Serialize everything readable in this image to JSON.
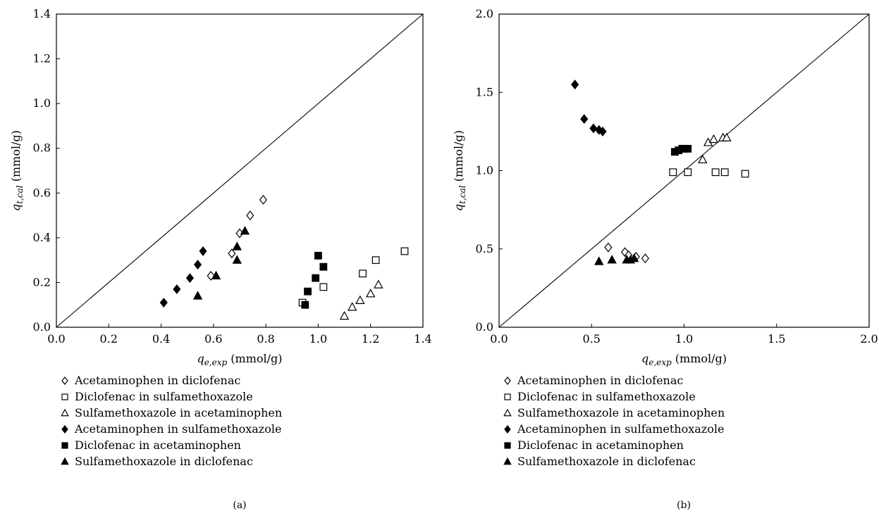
{
  "chart_data": [
    {
      "type": "scatter",
      "panel_label": "(a)",
      "title": "",
      "xlabel": {
        "base": "q",
        "sub": "e,exp",
        "unit": " (mmol/g)"
      },
      "ylabel": {
        "base": "q",
        "sub": "t,cal",
        "unit": " (mmol/g)"
      },
      "xlim": [
        0,
        1.4
      ],
      "ylim": [
        0,
        1.4
      ],
      "xticks": [
        "0.0",
        "0.2",
        "0.4",
        "0.6",
        "0.8",
        "1.0",
        "1.2",
        "1.4"
      ],
      "yticks": [
        "0.0",
        "0.2",
        "0.4",
        "0.6",
        "0.8",
        "1.0",
        "1.2",
        "1.4"
      ],
      "tick_step": 0.2,
      "diagonal": true,
      "legend_position": "below",
      "series": [
        {
          "name": "Acetaminophen in diclofenac",
          "marker": "diamond",
          "fill": false,
          "points": [
            [
              0.59,
              0.23
            ],
            [
              0.67,
              0.33
            ],
            [
              0.7,
              0.42
            ],
            [
              0.74,
              0.5
            ],
            [
              0.79,
              0.57
            ]
          ]
        },
        {
          "name": "Diclofenac in sulfamethoxazole",
          "marker": "square",
          "fill": false,
          "points": [
            [
              0.94,
              0.11
            ],
            [
              1.02,
              0.18
            ],
            [
              1.17,
              0.24
            ],
            [
              1.22,
              0.3
            ],
            [
              1.33,
              0.34
            ]
          ]
        },
        {
          "name": "Sulfamethoxazole in acetaminophen",
          "marker": "triangle",
          "fill": false,
          "points": [
            [
              1.1,
              0.05
            ],
            [
              1.13,
              0.09
            ],
            [
              1.16,
              0.12
            ],
            [
              1.2,
              0.15
            ],
            [
              1.23,
              0.19
            ]
          ]
        },
        {
          "name": "Acetaminophen in sulfamethoxazole",
          "marker": "diamond",
          "fill": true,
          "points": [
            [
              0.41,
              0.11
            ],
            [
              0.46,
              0.17
            ],
            [
              0.51,
              0.22
            ],
            [
              0.54,
              0.28
            ],
            [
              0.56,
              0.34
            ]
          ]
        },
        {
          "name": "Diclofenac in acetaminophen",
          "marker": "square",
          "fill": true,
          "points": [
            [
              0.95,
              0.1
            ],
            [
              0.96,
              0.16
            ],
            [
              0.99,
              0.22
            ],
            [
              1.0,
              0.32
            ],
            [
              1.02,
              0.27
            ]
          ]
        },
        {
          "name": "Sulfamethoxazole in diclofenac",
          "marker": "triangle",
          "fill": true,
          "points": [
            [
              0.54,
              0.14
            ],
            [
              0.61,
              0.23
            ],
            [
              0.69,
              0.3
            ],
            [
              0.69,
              0.36
            ],
            [
              0.72,
              0.43
            ]
          ]
        }
      ]
    },
    {
      "type": "scatter",
      "panel_label": "(b)",
      "title": "",
      "xlabel": {
        "base": "q",
        "sub": "e,exp",
        "unit": " (mmol/g)"
      },
      "ylabel": {
        "base": "q",
        "sub": "t,cal",
        "unit": " (mmol/g)"
      },
      "xlim": [
        0,
        2.0
      ],
      "ylim": [
        0,
        2.0
      ],
      "xticks": [
        "0.0",
        "0.5",
        "1.0",
        "1.5",
        "2.0"
      ],
      "yticks": [
        "0.0",
        "0.5",
        "1.0",
        "1.5",
        "2.0"
      ],
      "tick_step": 0.5,
      "diagonal": true,
      "legend_position": "below",
      "series": [
        {
          "name": "Acetaminophen in diclofenac",
          "marker": "diamond",
          "fill": false,
          "points": [
            [
              0.59,
              0.51
            ],
            [
              0.68,
              0.48
            ],
            [
              0.7,
              0.46
            ],
            [
              0.74,
              0.45
            ],
            [
              0.79,
              0.44
            ]
          ]
        },
        {
          "name": "Diclofenac in sulfamethoxazole",
          "marker": "square",
          "fill": false,
          "points": [
            [
              0.94,
              0.99
            ],
            [
              1.02,
              0.99
            ],
            [
              1.17,
              0.99
            ],
            [
              1.22,
              0.99
            ],
            [
              1.33,
              0.98
            ]
          ]
        },
        {
          "name": "Sulfamethoxazole in acetaminophen",
          "marker": "triangle",
          "fill": false,
          "points": [
            [
              1.1,
              1.07
            ],
            [
              1.13,
              1.18
            ],
            [
              1.16,
              1.2
            ],
            [
              1.21,
              1.21
            ],
            [
              1.23,
              1.21
            ]
          ]
        },
        {
          "name": "Acetaminophen in sulfamethoxazole",
          "marker": "diamond",
          "fill": true,
          "points": [
            [
              0.41,
              1.55
            ],
            [
              0.46,
              1.33
            ],
            [
              0.51,
              1.27
            ],
            [
              0.54,
              1.26
            ],
            [
              0.56,
              1.25
            ]
          ]
        },
        {
          "name": "Diclofenac in acetaminophen",
          "marker": "square",
          "fill": true,
          "points": [
            [
              0.95,
              1.12
            ],
            [
              0.97,
              1.13
            ],
            [
              0.99,
              1.14
            ],
            [
              1.0,
              1.14
            ],
            [
              1.02,
              1.14
            ]
          ]
        },
        {
          "name": "Sulfamethoxazole in diclofenac",
          "marker": "triangle",
          "fill": true,
          "points": [
            [
              0.54,
              0.42
            ],
            [
              0.61,
              0.43
            ],
            [
              0.69,
              0.43
            ],
            [
              0.71,
              0.43
            ],
            [
              0.73,
              0.44
            ]
          ]
        }
      ]
    }
  ]
}
